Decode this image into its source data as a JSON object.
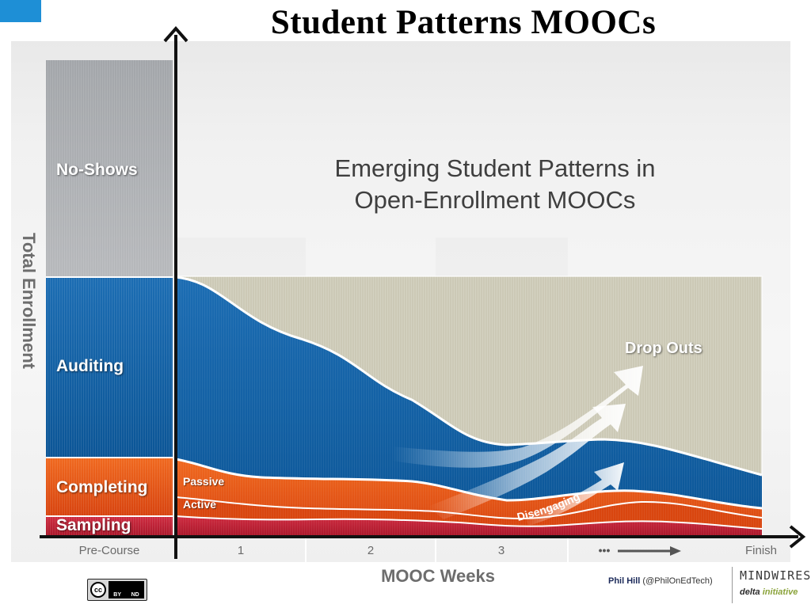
{
  "slide": {
    "title": "Student Patterns MOOCs"
  },
  "diagram": {
    "title_line1": "Emerging Student Patterns in",
    "title_line2": "Open-Enrollment MOOCs",
    "y_axis_label": "Total Enrollment",
    "x_axis_label": "MOOC Weeks",
    "x_ticks": [
      "Pre-Course",
      "1",
      "2",
      "3",
      "Finish"
    ],
    "x_tick_ellipsis": "•••",
    "segments": {
      "no_shows": "No-Shows",
      "auditing": "Auditing",
      "completing": "Completing",
      "sampling": "Sampling",
      "passive": "Passive",
      "active": "Active",
      "drop_outs": "Drop Outs",
      "disengaging": "Disengaging"
    },
    "colors": {
      "no_shows": "#a9acaf",
      "auditing": "#1f6fb4",
      "completing": "#e8581c",
      "sampling": "#c6283a",
      "drop_out_zone": "#ccc9b6"
    }
  },
  "footer": {
    "license_icons": [
      "creative-commons-icon",
      "by-icon",
      "nd-icon"
    ],
    "license_cc": "cc",
    "license_by": "BY",
    "license_nd": "ND",
    "credit_name": "Phil Hill",
    "credit_handle": "(@PhilOnEdTech)",
    "brand_name": "MINDWIRES",
    "brand_tagline_1": "delta",
    "brand_tagline_2": "initiative"
  }
}
